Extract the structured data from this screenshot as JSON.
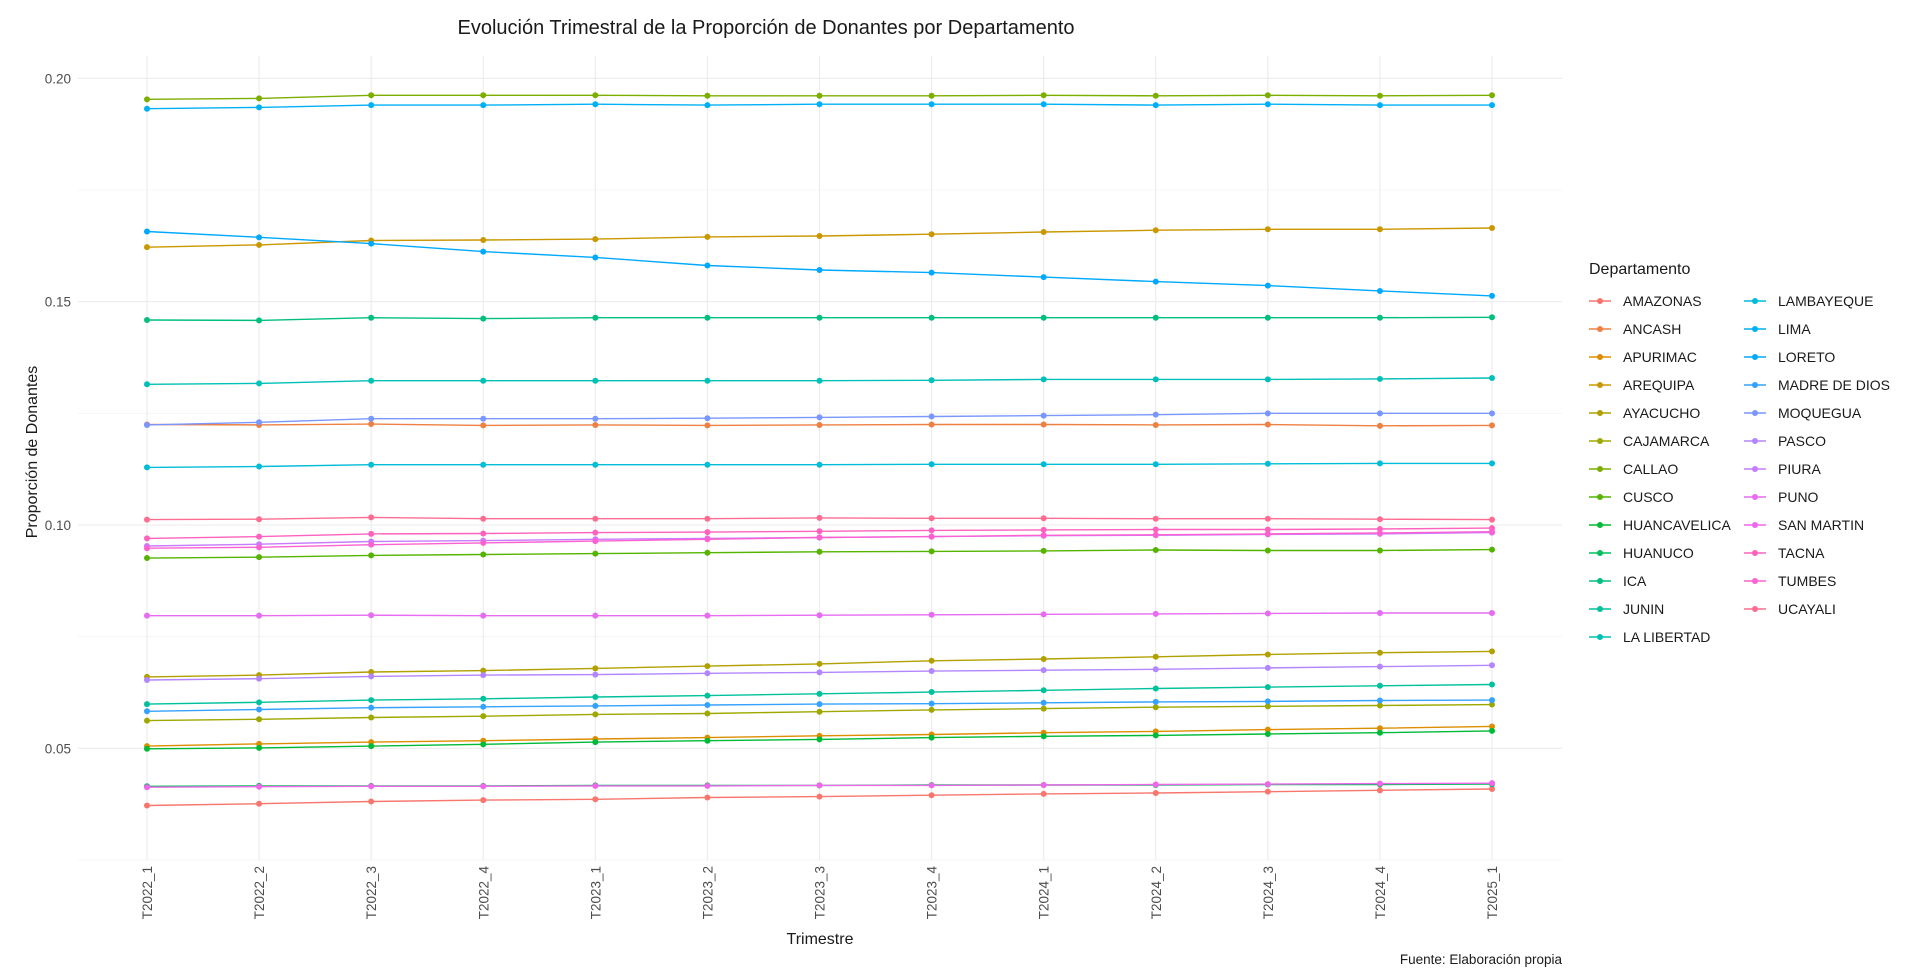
{
  "chart_data": {
    "type": "line",
    "title": "Evolución Trimestral de la Proporción de Donantes por Departamento",
    "xlabel": "Trimestre",
    "ylabel": "Proporción de Donantes",
    "caption": "Fuente: Elaboración propia",
    "legend_title": "Departamento",
    "legend_position": "right",
    "grid": true,
    "ylim": [
      0.025,
      0.205
    ],
    "y_ticks": [
      0.05,
      0.1,
      0.15,
      0.2
    ],
    "y_tick_labels": [
      "0.05",
      "0.10",
      "0.15",
      "0.20"
    ],
    "categories": [
      "T2022_1",
      "T2022_2",
      "T2022_3",
      "T2022_4",
      "T2023_1",
      "T2023_2",
      "T2023_3",
      "T2023_4",
      "T2024_1",
      "T2024_2",
      "T2024_3",
      "T2024_4",
      "T2025_1"
    ],
    "series": [
      {
        "name": "AMAZONAS",
        "color": "#F8766D",
        "values": [
          0.0372,
          0.0376,
          0.0381,
          0.0384,
          0.0386,
          0.039,
          0.0392,
          0.0395,
          0.0398,
          0.04,
          0.0403,
          0.0406,
          0.0409
        ]
      },
      {
        "name": "ANCASH",
        "color": "#EE8043",
        "values": [
          0.1225,
          0.1224,
          0.1226,
          0.1223,
          0.1224,
          0.1223,
          0.1224,
          0.1225,
          0.1225,
          0.1224,
          0.1225,
          0.1222,
          0.1223
        ]
      },
      {
        "name": "APURIMAC",
        "color": "#DD8D00",
        "values": [
          0.0505,
          0.051,
          0.0514,
          0.0517,
          0.0521,
          0.0524,
          0.0528,
          0.0531,
          0.0535,
          0.0538,
          0.0542,
          0.0545,
          0.0549
        ]
      },
      {
        "name": "AREQUIPA",
        "color": "#CB9700",
        "values": [
          0.1622,
          0.1627,
          0.1637,
          0.1638,
          0.164,
          0.1645,
          0.1647,
          0.1651,
          0.1656,
          0.166,
          0.1662,
          0.1662,
          0.1665
        ]
      },
      {
        "name": "AYACUCHO",
        "color": "#B2A000",
        "values": [
          0.066,
          0.0664,
          0.0671,
          0.0674,
          0.0679,
          0.0684,
          0.0689,
          0.0696,
          0.07,
          0.0705,
          0.071,
          0.0714,
          0.0717
        ]
      },
      {
        "name": "CAJAMARCA",
        "color": "#9FA800",
        "values": [
          0.0562,
          0.0565,
          0.0569,
          0.0572,
          0.0576,
          0.0578,
          0.0582,
          0.0586,
          0.0589,
          0.0592,
          0.0594,
          0.0596,
          0.0598
        ]
      },
      {
        "name": "CALLAO",
        "color": "#7CAE00",
        "values": [
          0.1953,
          0.1955,
          0.1962,
          0.1962,
          0.1962,
          0.1961,
          0.1961,
          0.1961,
          0.1962,
          0.1961,
          0.1962,
          0.1961,
          0.1962
        ]
      },
      {
        "name": "CUSCO",
        "color": "#54B400",
        "values": [
          0.0926,
          0.0928,
          0.0932,
          0.0934,
          0.0936,
          0.0938,
          0.094,
          0.0941,
          0.0942,
          0.0944,
          0.0943,
          0.0943,
          0.0945
        ]
      },
      {
        "name": "HUANCAVELICA",
        "color": "#00BA38",
        "values": [
          0.0499,
          0.0501,
          0.0505,
          0.0509,
          0.0514,
          0.0517,
          0.052,
          0.0524,
          0.0527,
          0.0529,
          0.0532,
          0.0535,
          0.0539
        ]
      },
      {
        "name": "HUANUCO",
        "color": "#00BD5C",
        "values": [
          0.0415,
          0.0416,
          0.0416,
          0.0416,
          0.0417,
          0.0417,
          0.0417,
          0.0418,
          0.0418,
          0.0418,
          0.0419,
          0.0419,
          0.042
        ]
      },
      {
        "name": "ICA",
        "color": "#00BF7D",
        "values": [
          0.1459,
          0.1458,
          0.1464,
          0.1462,
          0.1464,
          0.1464,
          0.1464,
          0.1464,
          0.1464,
          0.1464,
          0.1464,
          0.1464,
          0.1465
        ]
      },
      {
        "name": "JUNIN",
        "color": "#00C19C",
        "values": [
          0.0599,
          0.0603,
          0.0608,
          0.0611,
          0.0615,
          0.0618,
          0.0622,
          0.0626,
          0.063,
          0.0634,
          0.0637,
          0.064,
          0.0643
        ]
      },
      {
        "name": "LA LIBERTAD",
        "color": "#00C0B8",
        "values": [
          0.1315,
          0.1317,
          0.1323,
          0.1323,
          0.1323,
          0.1323,
          0.1323,
          0.1324,
          0.1326,
          0.1326,
          0.1326,
          0.1327,
          0.1329
        ]
      },
      {
        "name": "LAMBAYEQUE",
        "color": "#00BCD8",
        "values": [
          0.1129,
          0.1131,
          0.1135,
          0.1135,
          0.1135,
          0.1135,
          0.1135,
          0.1136,
          0.1136,
          0.1136,
          0.1137,
          0.1138,
          0.1138
        ]
      },
      {
        "name": "LIMA",
        "color": "#00B0F6",
        "values": [
          0.1932,
          0.1935,
          0.194,
          0.194,
          0.1942,
          0.194,
          0.1942,
          0.1942,
          0.1942,
          0.194,
          0.1942,
          0.194,
          0.194
        ]
      },
      {
        "name": "LORETO",
        "color": "#00A9FF",
        "values": [
          0.1657,
          0.1644,
          0.163,
          0.1612,
          0.1599,
          0.1581,
          0.1571,
          0.1565,
          0.1555,
          0.1545,
          0.1536,
          0.1524,
          0.1513
        ]
      },
      {
        "name": "MADRE DE DIOS",
        "color": "#35A2FF",
        "values": [
          0.0583,
          0.0587,
          0.0591,
          0.0593,
          0.0595,
          0.0597,
          0.0599,
          0.06,
          0.0602,
          0.0604,
          0.0605,
          0.0607,
          0.0608
        ]
      },
      {
        "name": "MOQUEGUA",
        "color": "#7997FF",
        "values": [
          0.1224,
          0.123,
          0.1238,
          0.1238,
          0.1238,
          0.1239,
          0.1241,
          0.1243,
          0.1245,
          0.1247,
          0.125,
          0.125,
          0.125
        ]
      },
      {
        "name": "PASCO",
        "color": "#B385FF",
        "values": [
          0.0653,
          0.0656,
          0.0661,
          0.0664,
          0.0665,
          0.0668,
          0.067,
          0.0673,
          0.0675,
          0.0677,
          0.068,
          0.0683,
          0.0686
        ]
      },
      {
        "name": "PIURA",
        "color": "#C77CFF",
        "values": [
          0.0953,
          0.0957,
          0.0963,
          0.0965,
          0.0968,
          0.097,
          0.0972,
          0.0974,
          0.0976,
          0.0977,
          0.0979,
          0.098,
          0.0983
        ]
      },
      {
        "name": "PUNO",
        "color": "#E76BF3",
        "values": [
          0.0797,
          0.0797,
          0.0798,
          0.0797,
          0.0797,
          0.0797,
          0.0798,
          0.0799,
          0.08,
          0.0801,
          0.0802,
          0.0803,
          0.0803
        ]
      },
      {
        "name": "SAN MARTIN",
        "color": "#EF67EB",
        "values": [
          0.0413,
          0.0414,
          0.0415,
          0.0415,
          0.0416,
          0.0416,
          0.0417,
          0.0417,
          0.0418,
          0.0419,
          0.042,
          0.0421,
          0.0422
        ]
      },
      {
        "name": "TACNA",
        "color": "#FF62BC",
        "values": [
          0.097,
          0.0974,
          0.098,
          0.0981,
          0.0983,
          0.0984,
          0.0986,
          0.0988,
          0.0989,
          0.099,
          0.099,
          0.0991,
          0.0993
        ]
      },
      {
        "name": "TUMBES",
        "color": "#FD61D1",
        "values": [
          0.0948,
          0.095,
          0.0956,
          0.096,
          0.0964,
          0.0968,
          0.0972,
          0.0974,
          0.0977,
          0.0978,
          0.098,
          0.0982,
          0.0985
        ]
      },
      {
        "name": "UCAYALI",
        "color": "#FF6C91",
        "values": [
          0.1012,
          0.1013,
          0.1017,
          0.1014,
          0.1014,
          0.1014,
          0.1016,
          0.1015,
          0.1015,
          0.1014,
          0.1014,
          0.1013,
          0.1012
        ]
      }
    ]
  }
}
